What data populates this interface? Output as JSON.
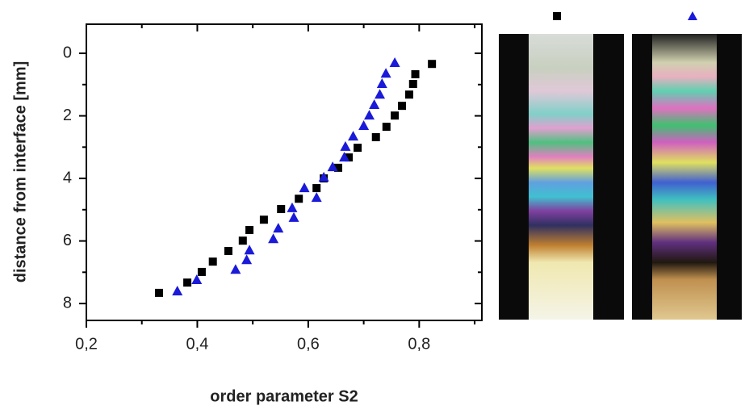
{
  "chart_data": {
    "type": "scatter",
    "x_label": "order parameter S2",
    "y_label": "distance from interface [mm]",
    "xlim": [
      0.2,
      0.913
    ],
    "xticks": [
      {
        "value": 0.2,
        "label": "0,2"
      },
      {
        "value": 0.4,
        "label": "0,4"
      },
      {
        "value": 0.6,
        "label": "0,6"
      },
      {
        "value": 0.8,
        "label": "0,8"
      }
    ],
    "xminorticks": [
      0.3,
      0.5,
      0.7,
      0.9
    ],
    "ylim": [
      -0.93,
      8.54
    ],
    "y_inverted": true,
    "yticks": [
      0,
      2,
      4,
      6,
      8
    ],
    "yminorticks": [
      1,
      3,
      5,
      7
    ],
    "series": [
      {
        "color": "#000000",
        "marker": "square",
        "x": [
          0.331,
          0.382,
          0.408,
          0.428,
          0.456,
          0.482,
          0.494,
          0.52,
          0.551,
          0.583,
          0.615,
          0.628,
          0.654,
          0.673,
          0.689,
          0.722,
          0.741,
          0.756,
          0.769,
          0.782,
          0.789,
          0.793,
          0.823
        ],
        "values": [
          7.66,
          7.33,
          6.99,
          6.66,
          6.32,
          5.99,
          5.65,
          5.32,
          4.98,
          4.65,
          4.31,
          4.0,
          3.66,
          3.33,
          3.02,
          2.68,
          2.35,
          1.99,
          1.68,
          1.32,
          0.98,
          0.67,
          0.34
        ]
      },
      {
        "color": "#1a1ad8",
        "marker": "triangle",
        "x": [
          0.364,
          0.399,
          0.469,
          0.489,
          0.494,
          0.537,
          0.546,
          0.574,
          0.571,
          0.615,
          0.593,
          0.628,
          0.644,
          0.665,
          0.667,
          0.681,
          0.7,
          0.71,
          0.719,
          0.729,
          0.733,
          0.74,
          0.756
        ],
        "values": [
          7.61,
          7.25,
          6.92,
          6.61,
          6.3,
          5.94,
          5.6,
          5.26,
          4.95,
          4.62,
          4.31,
          3.97,
          3.64,
          3.33,
          2.99,
          2.66,
          2.32,
          1.99,
          1.65,
          1.32,
          0.98,
          0.65,
          0.31
        ]
      }
    ]
  }
}
